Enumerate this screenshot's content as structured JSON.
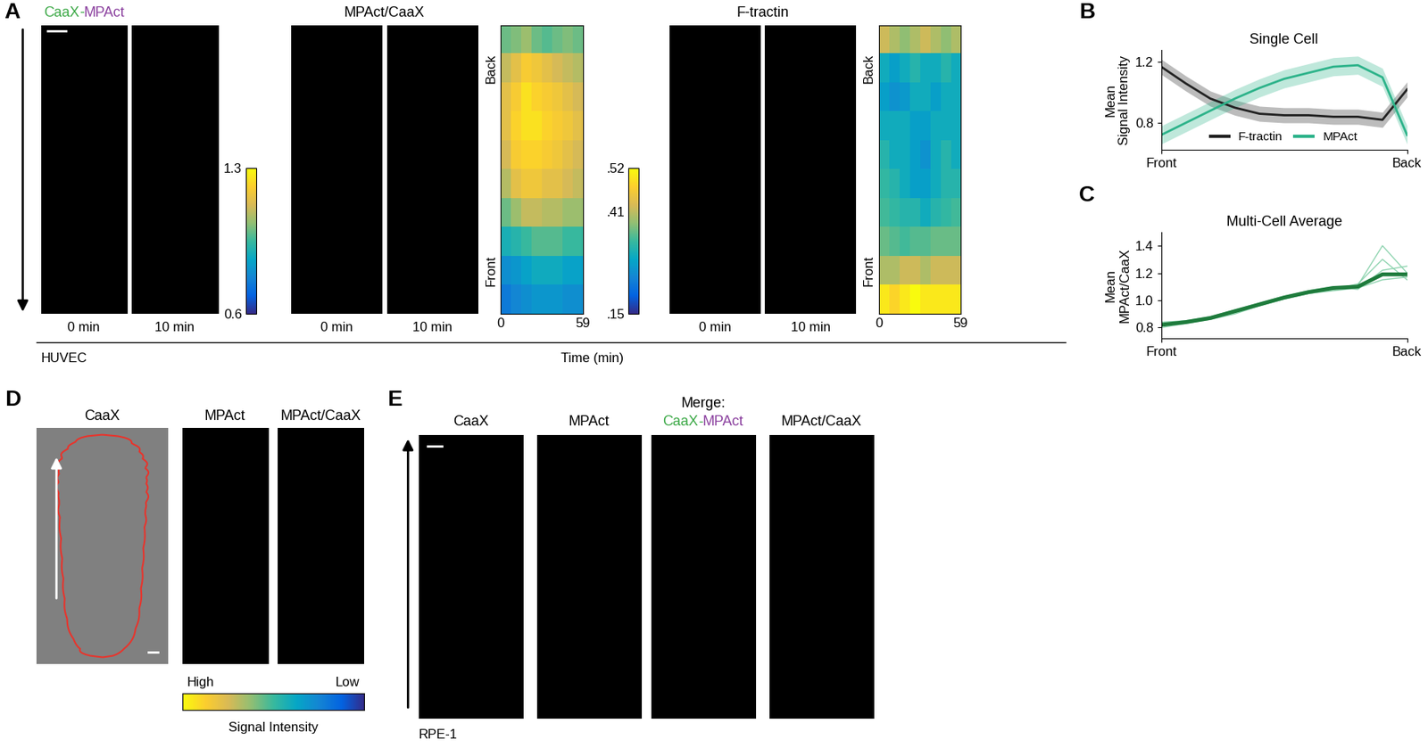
{
  "panel_labels": {
    "a": "A",
    "b": "B",
    "c": "C",
    "d": "D",
    "e": "E"
  },
  "panel_a": {
    "merge_title": [
      {
        "text": "CaaX",
        "color": "#3aa845"
      },
      {
        "text": "-",
        "color": "#3aa845"
      },
      {
        "text": "MPAct",
        "color": "#8a3f9e"
      }
    ],
    "time_labels": [
      "0 min",
      "10 min"
    ],
    "ratio_title": "MPAct/CaaX",
    "ftractin_title": "F-tractin",
    "cell_line": "HUVEC",
    "time_axis_label": "Time (min)"
  },
  "chart_data": [
    {
      "type": "heatmap",
      "y_labels": [
        "Back",
        "Front"
      ],
      "xlim": [
        0,
        59
      ],
      "xticks": [
        0,
        59
      ],
      "cells": [
        [
          1.0,
          1.02,
          1.05,
          1.0,
          0.98,
          1.0,
          1.02,
          1.0
        ],
        [
          1.1,
          1.15,
          1.2,
          1.18,
          1.15,
          1.12,
          1.1,
          1.08
        ],
        [
          1.15,
          1.2,
          1.25,
          1.22,
          1.2,
          1.18,
          1.15,
          1.12
        ],
        [
          1.15,
          1.22,
          1.25,
          1.25,
          1.22,
          1.2,
          1.18,
          1.15
        ],
        [
          1.12,
          1.2,
          1.22,
          1.22,
          1.2,
          1.18,
          1.15,
          1.12
        ],
        [
          1.08,
          1.15,
          1.18,
          1.18,
          1.15,
          1.15,
          1.12,
          1.1
        ],
        [
          1.0,
          1.05,
          1.1,
          1.1,
          1.08,
          1.08,
          1.05,
          1.05
        ],
        [
          0.9,
          0.92,
          0.95,
          0.98,
          0.98,
          0.98,
          0.95,
          0.95
        ],
        [
          0.8,
          0.82,
          0.85,
          0.88,
          0.88,
          0.88,
          0.85,
          0.85
        ],
        [
          0.75,
          0.78,
          0.8,
          0.82,
          0.82,
          0.82,
          0.8,
          0.8
        ]
      ],
      "colorbar": {
        "range": [
          0.6,
          1.3
        ],
        "ticks": [
          0.6,
          1.3
        ]
      }
    },
    {
      "type": "heatmap",
      "y_labels": [
        "Back",
        "Front"
      ],
      "xlim": [
        0,
        59
      ],
      "xticks": [
        0,
        59
      ],
      "cells": [
        [
          0.42,
          0.4,
          0.38,
          0.4,
          0.42,
          0.4,
          0.38,
          0.4
        ],
        [
          0.3,
          0.28,
          0.3,
          0.32,
          0.3,
          0.3,
          0.32,
          0.3
        ],
        [
          0.28,
          0.26,
          0.27,
          0.3,
          0.3,
          0.28,
          0.3,
          0.3
        ],
        [
          0.3,
          0.3,
          0.3,
          0.28,
          0.28,
          0.3,
          0.3,
          0.3
        ],
        [
          0.32,
          0.3,
          0.3,
          0.28,
          0.26,
          0.3,
          0.32,
          0.3
        ],
        [
          0.33,
          0.32,
          0.3,
          0.28,
          0.28,
          0.3,
          0.32,
          0.32
        ],
        [
          0.34,
          0.33,
          0.32,
          0.32,
          0.3,
          0.32,
          0.33,
          0.34
        ],
        [
          0.36,
          0.35,
          0.34,
          0.35,
          0.35,
          0.36,
          0.36,
          0.36
        ],
        [
          0.4,
          0.4,
          0.42,
          0.42,
          0.4,
          0.42,
          0.42,
          0.42
        ],
        [
          0.5,
          0.48,
          0.5,
          0.52,
          0.5,
          0.5,
          0.5,
          0.5
        ]
      ],
      "colorbar": {
        "range": [
          0.15,
          0.52
        ],
        "ticks": [
          {
            "value": 0.15,
            "label": ".15"
          },
          {
            "value": 0.41,
            "label": ".41"
          },
          {
            "value": 0.52,
            "label": ".52"
          }
        ]
      }
    },
    {
      "type": "line",
      "title": "Single Cell",
      "ylabel": "Mean\nSignal Intensity",
      "x": [
        0,
        0.1,
        0.2,
        0.3,
        0.4,
        0.5,
        0.6,
        0.7,
        0.8,
        0.9,
        1.0
      ],
      "xlim": [
        0,
        1
      ],
      "xticks": [
        {
          "value": 0,
          "label": "Front"
        },
        {
          "value": 1,
          "label": "Back"
        }
      ],
      "ylim": [
        0.62,
        1.28
      ],
      "yticks": [
        0.8,
        1.2
      ],
      "legend": "lower center",
      "series": [
        {
          "name": "F-tractin",
          "color": "#222222",
          "values": [
            1.17,
            1.06,
            0.96,
            0.9,
            0.86,
            0.85,
            0.85,
            0.84,
            0.84,
            0.82,
            1.02
          ],
          "lower": [
            1.12,
            1.01,
            0.91,
            0.85,
            0.81,
            0.8,
            0.8,
            0.79,
            0.79,
            0.77,
            0.97
          ],
          "upper": [
            1.22,
            1.11,
            1.01,
            0.95,
            0.91,
            0.9,
            0.9,
            0.89,
            0.89,
            0.87,
            1.07
          ]
        },
        {
          "name": "MPAct",
          "color": "#2db38a",
          "values": [
            0.72,
            0.8,
            0.88,
            0.96,
            1.03,
            1.09,
            1.13,
            1.17,
            1.18,
            1.1,
            0.72
          ],
          "lower": [
            0.66,
            0.74,
            0.82,
            0.9,
            0.97,
            1.03,
            1.07,
            1.11,
            1.12,
            1.04,
            0.66
          ],
          "upper": [
            0.78,
            0.86,
            0.94,
            1.02,
            1.09,
            1.15,
            1.19,
            1.23,
            1.24,
            1.16,
            0.78
          ]
        }
      ]
    },
    {
      "type": "line",
      "title": "Multi-Cell Average",
      "ylabel": "Mean\nMPAct/CaaX",
      "x": [
        0,
        0.1,
        0.2,
        0.3,
        0.4,
        0.5,
        0.6,
        0.7,
        0.8,
        0.9,
        1.0
      ],
      "xlim": [
        0,
        1
      ],
      "xticks": [
        {
          "value": 0,
          "label": "Front"
        },
        {
          "value": 1,
          "label": "Back"
        }
      ],
      "ylim": [
        0.72,
        1.5
      ],
      "yticks": [
        0.8,
        {
          "value": 1,
          "label": "1.0"
        },
        1.2,
        1.4
      ],
      "series": [
        {
          "color": "#8fd4b0",
          "values": [
            0.8,
            0.83,
            0.86,
            0.9,
            0.96,
            1.01,
            1.05,
            1.08,
            1.12,
            1.3,
            1.15
          ]
        },
        {
          "color": "#8fd4b0",
          "values": [
            0.84,
            0.85,
            0.88,
            0.93,
            0.98,
            1.03,
            1.07,
            1.1,
            1.08,
            1.22,
            1.25
          ]
        },
        {
          "color": "#8fd4b0",
          "values": [
            0.81,
            0.84,
            0.87,
            0.92,
            0.97,
            1.02,
            1.06,
            1.09,
            1.11,
            1.4,
            1.2
          ]
        },
        {
          "color": "#8fd4b0",
          "values": [
            0.83,
            0.85,
            0.86,
            0.91,
            0.96,
            1.01,
            1.05,
            1.07,
            1.09,
            1.15,
            1.17
          ]
        },
        {
          "color": "#1e7b3c",
          "values": [
            0.82,
            0.84,
            0.87,
            0.92,
            0.97,
            1.02,
            1.06,
            1.09,
            1.1,
            1.19,
            1.19
          ]
        }
      ]
    }
  ],
  "panel_d": {
    "titles": [
      "CaaX",
      "MPAct",
      "MPAct/CaaX"
    ],
    "colorbar": {
      "high": "High",
      "low": "Low",
      "label": "Signal Intensity"
    }
  },
  "panel_e": {
    "titles": [
      "CaaX",
      "MPAct",
      "Merge:",
      "MPAct/CaaX"
    ],
    "merge_title": [
      {
        "text": "CaaX",
        "color": "#3aa845"
      },
      {
        "text": "-",
        "color": "#3aa845"
      },
      {
        "text": "MPAct",
        "color": "#8a3f9e"
      }
    ],
    "cell_line": "RPE-1"
  }
}
